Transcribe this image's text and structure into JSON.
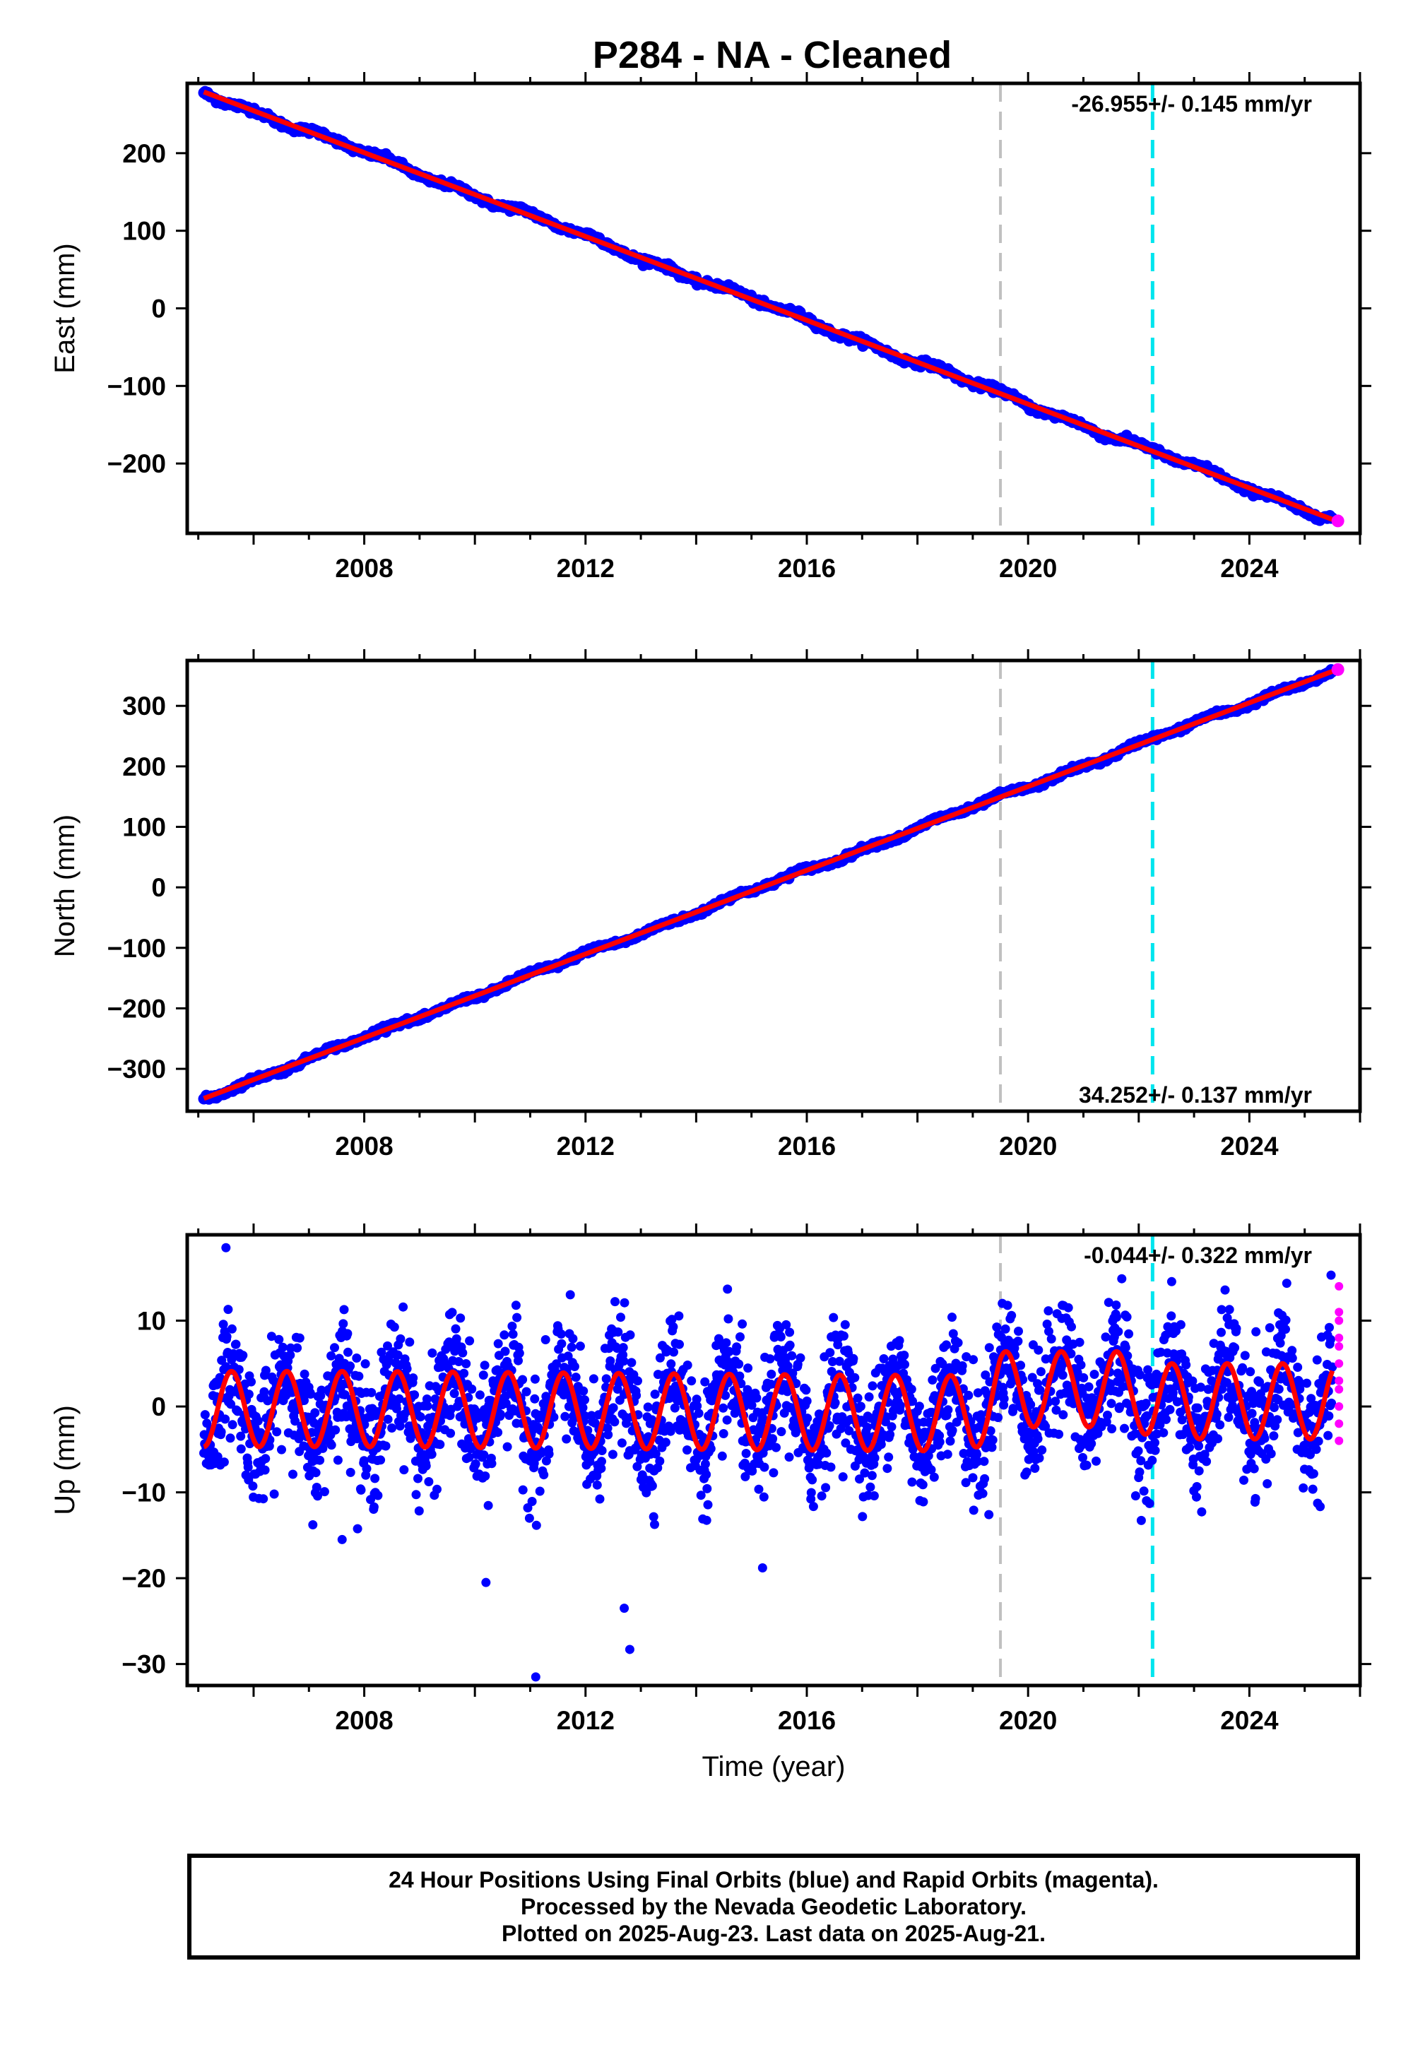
{
  "title": "P284  - NA - Cleaned",
  "colors": {
    "final_orbits": "#0000ff",
    "rapid_orbits": "#ff00ff",
    "model": "#ff0000",
    "gray_line": "#c0c0c0",
    "cyan_line": "#00e5ee"
  },
  "footer": {
    "line1": "24 Hour Positions Using Final Orbits (blue) and Rapid Orbits (magenta).",
    "line2": "Processed by the Nevada Geodetic Laboratory.",
    "line3": "Plotted on 2025-Aug-23. Last data on 2025-Aug-21."
  },
  "chart_data": [
    {
      "type": "scatter",
      "ylabel": "East (mm)",
      "xlabel": "",
      "xlim": [
        2004.8,
        2026.0
      ],
      "ylim": [
        -290,
        290
      ],
      "xticks": [
        2008,
        2012,
        2016,
        2020,
        2024
      ],
      "xtick_labels": [
        "2008",
        "2012",
        "2016",
        "2020",
        "2024"
      ],
      "yticks": [
        -200,
        -100,
        0,
        100,
        200
      ],
      "ytick_labels": [
        "−200",
        "−100",
        "0",
        "100",
        "200"
      ],
      "rate_label": "-26.955+/- 0.145 mm/yr",
      "rate_position": "top-right",
      "vertical_lines": [
        {
          "x": 2019.5,
          "color": "gray",
          "style": "dashed"
        },
        {
          "x": 2022.25,
          "color": "cyan",
          "style": "dashed"
        }
      ],
      "series": [
        {
          "role": "final_orbits_blue",
          "x_range": [
            2005.1,
            2025.5
          ],
          "start": 280,
          "end": -270,
          "noise_mm": 2
        },
        {
          "role": "rapid_orbits_magenta",
          "x_range": [
            2025.5,
            2025.65
          ],
          "value": -274
        },
        {
          "role": "model_red",
          "type": "line",
          "start": 279,
          "end": -272
        }
      ],
      "grid": false
    },
    {
      "type": "scatter",
      "ylabel": "North (mm)",
      "xlabel": "",
      "xlim": [
        2004.8,
        2026.0
      ],
      "ylim": [
        -370,
        375
      ],
      "xticks": [
        2008,
        2012,
        2016,
        2020,
        2024
      ],
      "xtick_labels": [
        "2008",
        "2012",
        "2016",
        "2020",
        "2024"
      ],
      "yticks": [
        -300,
        -200,
        -100,
        0,
        100,
        200,
        300
      ],
      "ytick_labels": [
        "−300",
        "−200",
        "−100",
        "0",
        "100",
        "200",
        "300"
      ],
      "rate_label": "34.252+/- 0.137 mm/yr",
      "rate_position": "bottom-right",
      "vertical_lines": [
        {
          "x": 2019.5,
          "color": "gray",
          "style": "dashed"
        },
        {
          "x": 2022.25,
          "color": "cyan",
          "style": "dashed"
        }
      ],
      "series": [
        {
          "role": "final_orbits_blue",
          "x_range": [
            2005.1,
            2025.5
          ],
          "start": -350,
          "end": 355,
          "noise_mm": 2
        },
        {
          "role": "rapid_orbits_magenta",
          "x_range": [
            2025.5,
            2025.65
          ],
          "value": 360
        },
        {
          "role": "model_red",
          "type": "line",
          "start": -349,
          "end": 357
        }
      ],
      "grid": false
    },
    {
      "type": "scatter",
      "ylabel": "Up (mm)",
      "xlabel": "Time (year)",
      "xlim": [
        2004.8,
        2026.0
      ],
      "ylim": [
        -32.5,
        20
      ],
      "xticks": [
        2008,
        2012,
        2016,
        2020,
        2024
      ],
      "xtick_labels": [
        "2008",
        "2012",
        "2016",
        "2020",
        "2024"
      ],
      "yticks": [
        -30,
        -20,
        -10,
        0,
        10
      ],
      "ytick_labels": [
        "−30",
        "−20",
        "−10",
        "0",
        "10"
      ],
      "rate_label": "-0.044+/- 0.322 mm/yr",
      "rate_position": "top-right",
      "vertical_lines": [
        {
          "x": 2019.5,
          "color": "gray",
          "style": "dashed"
        },
        {
          "x": 2022.25,
          "color": "cyan",
          "style": "dashed"
        }
      ],
      "series": [
        {
          "role": "final_orbits_blue",
          "x_range": [
            2005.1,
            2025.5
          ],
          "seasonal_amplitude_mm": 4.5,
          "noise_mm": 3.5
        },
        {
          "role": "rapid_orbits_magenta",
          "x_range": [
            2025.5,
            2025.65
          ],
          "values_mm": [
            14,
            11,
            10,
            8,
            7,
            5,
            3,
            2,
            0,
            -2,
            -4
          ]
        },
        {
          "role": "model_red",
          "type": "line",
          "seasonal_amplitude_mm": 4.4,
          "annual_offsets": [
            [
              2005.1,
              -0.3
            ],
            [
              2008,
              -0.3
            ],
            [
              2012,
              -0.5
            ],
            [
              2016,
              -0.7
            ],
            [
              2019.0,
              -0.8
            ],
            [
              2019.5,
              2.0
            ],
            [
              2021.9,
              2.0
            ],
            [
              2022.25,
              0.6
            ],
            [
              2025.6,
              0.6
            ]
          ]
        }
      ],
      "outliers_mm": [
        [
          2005.5,
          18.5
        ],
        [
          2007.6,
          -15.5
        ],
        [
          2011.1,
          -31.5
        ],
        [
          2012.7,
          -23.5
        ],
        [
          2012.8,
          -28.3
        ],
        [
          2010.2,
          -20.5
        ],
        [
          2015.2,
          -18.8
        ]
      ],
      "grid": false
    }
  ]
}
